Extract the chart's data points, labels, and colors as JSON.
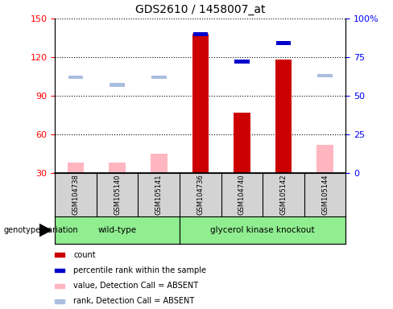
{
  "title": "GDS2610 / 1458007_at",
  "samples": [
    "GSM104738",
    "GSM105140",
    "GSM105141",
    "GSM104736",
    "GSM104740",
    "GSM105142",
    "GSM105144"
  ],
  "group_indices": {
    "wild-type": [
      0,
      1,
      2
    ],
    "glycerol kinase knockout": [
      3,
      4,
      5,
      6
    ]
  },
  "count_values": [
    null,
    null,
    null,
    138,
    77,
    118,
    null
  ],
  "rank_values_pct": [
    null,
    null,
    null,
    90,
    72,
    84,
    null
  ],
  "absent_value": [
    38,
    38,
    45,
    null,
    null,
    null,
    52
  ],
  "absent_rank_pct": [
    62,
    57,
    62,
    null,
    null,
    null,
    63
  ],
  "ylim_left": [
    30,
    150
  ],
  "ylim_right": [
    0,
    100
  ],
  "y_ticks_left": [
    30,
    60,
    90,
    120,
    150
  ],
  "y_ticks_right": [
    0,
    25,
    50,
    75,
    100
  ],
  "bar_color_red": "#CC0000",
  "bar_color_blue": "#0000CC",
  "absent_bar_color": "#FFB6C1",
  "absent_rank_color": "#AABEDE",
  "plot_bg": "#FFFFFF",
  "sample_box_bg": "#D3D3D3",
  "group_box_bg": "#90EE90",
  "legend_label_count": "count",
  "legend_label_rank": "percentile rank within the sample",
  "legend_label_absent_val": "value, Detection Call = ABSENT",
  "legend_label_absent_rank": "rank, Detection Call = ABSENT",
  "genotype_label": "genotype/variation"
}
